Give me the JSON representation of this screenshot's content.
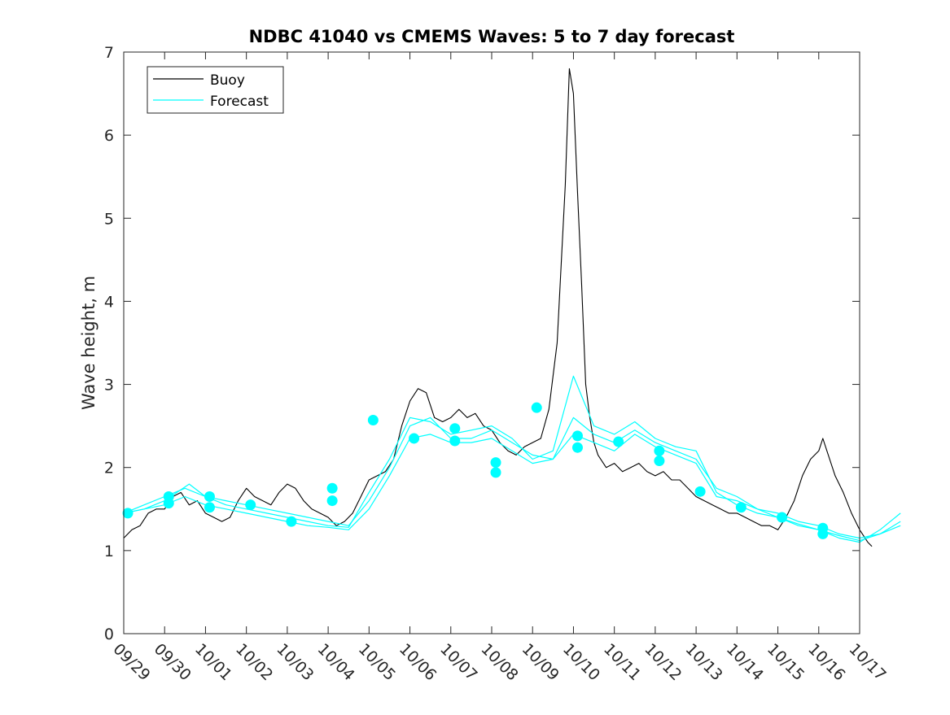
{
  "chart_data": {
    "type": "line",
    "title": "NDBC 41040 vs CMEMS Waves: 5 to 7 day forecast",
    "xlabel": "",
    "ylabel": "Wave height, m",
    "xlim": [
      "09/29",
      "10/17"
    ],
    "ylim": [
      0,
      7
    ],
    "x_ticks": [
      "09/29",
      "09/30",
      "10/01",
      "10/02",
      "10/03",
      "10/04",
      "10/05",
      "10/06",
      "10/07",
      "10/08",
      "10/09",
      "10/10",
      "10/11",
      "10/12",
      "10/13",
      "10/14",
      "10/15",
      "10/16",
      "10/17"
    ],
    "y_ticks": [
      0,
      1,
      2,
      3,
      4,
      5,
      6,
      7
    ],
    "x_units": "days since 09/29 00:00",
    "grid": false,
    "legend": {
      "placement": "top-left",
      "entries": [
        "Buoy",
        "Forecast"
      ]
    },
    "colors": {
      "buoy": "#000000",
      "forecast": "#00ffff",
      "axes": "#262626"
    },
    "series": [
      {
        "name": "Buoy",
        "color": "#000000",
        "points": [
          [
            0,
            1.15
          ],
          [
            0.2,
            1.25
          ],
          [
            0.4,
            1.3
          ],
          [
            0.6,
            1.45
          ],
          [
            0.8,
            1.5
          ],
          [
            1.0,
            1.5
          ],
          [
            1.2,
            1.65
          ],
          [
            1.4,
            1.7
          ],
          [
            1.6,
            1.55
          ],
          [
            1.8,
            1.6
          ],
          [
            2.0,
            1.45
          ],
          [
            2.2,
            1.4
          ],
          [
            2.4,
            1.35
          ],
          [
            2.6,
            1.4
          ],
          [
            2.8,
            1.6
          ],
          [
            3.0,
            1.75
          ],
          [
            3.2,
            1.65
          ],
          [
            3.4,
            1.6
          ],
          [
            3.6,
            1.55
          ],
          [
            3.8,
            1.7
          ],
          [
            4.0,
            1.8
          ],
          [
            4.2,
            1.75
          ],
          [
            4.4,
            1.6
          ],
          [
            4.6,
            1.5
          ],
          [
            4.8,
            1.45
          ],
          [
            5.0,
            1.4
          ],
          [
            5.2,
            1.3
          ],
          [
            5.4,
            1.35
          ],
          [
            5.6,
            1.45
          ],
          [
            5.8,
            1.65
          ],
          [
            6.0,
            1.85
          ],
          [
            6.2,
            1.9
          ],
          [
            6.4,
            1.95
          ],
          [
            6.6,
            2.1
          ],
          [
            6.8,
            2.5
          ],
          [
            7.0,
            2.8
          ],
          [
            7.2,
            2.95
          ],
          [
            7.4,
            2.9
          ],
          [
            7.6,
            2.6
          ],
          [
            7.8,
            2.55
          ],
          [
            8.0,
            2.6
          ],
          [
            8.2,
            2.7
          ],
          [
            8.4,
            2.6
          ],
          [
            8.6,
            2.65
          ],
          [
            8.8,
            2.5
          ],
          [
            9.0,
            2.45
          ],
          [
            9.2,
            2.3
          ],
          [
            9.4,
            2.2
          ],
          [
            9.6,
            2.15
          ],
          [
            9.8,
            2.25
          ],
          [
            10.0,
            2.3
          ],
          [
            10.2,
            2.35
          ],
          [
            10.4,
            2.7
          ],
          [
            10.6,
            3.5
          ],
          [
            10.8,
            5.4
          ],
          [
            10.9,
            6.8
          ],
          [
            11.0,
            6.5
          ],
          [
            11.1,
            5.3
          ],
          [
            11.2,
            4.2
          ],
          [
            11.3,
            3.0
          ],
          [
            11.4,
            2.6
          ],
          [
            11.5,
            2.3
          ],
          [
            11.6,
            2.15
          ],
          [
            11.8,
            2.0
          ],
          [
            12.0,
            2.05
          ],
          [
            12.2,
            1.95
          ],
          [
            12.4,
            2.0
          ],
          [
            12.6,
            2.05
          ],
          [
            12.8,
            1.95
          ],
          [
            13.0,
            1.9
          ],
          [
            13.2,
            1.95
          ],
          [
            13.4,
            1.85
          ],
          [
            13.6,
            1.85
          ],
          [
            13.8,
            1.75
          ],
          [
            14.0,
            1.65
          ],
          [
            14.2,
            1.6
          ],
          [
            14.4,
            1.55
          ],
          [
            14.6,
            1.5
          ],
          [
            14.8,
            1.45
          ],
          [
            15.0,
            1.45
          ],
          [
            15.2,
            1.4
          ],
          [
            15.4,
            1.35
          ],
          [
            15.6,
            1.3
          ],
          [
            15.8,
            1.3
          ],
          [
            16.0,
            1.25
          ],
          [
            16.2,
            1.4
          ],
          [
            16.4,
            1.6
          ],
          [
            16.6,
            1.9
          ],
          [
            16.8,
            2.1
          ],
          [
            17.0,
            2.2
          ],
          [
            17.1,
            2.35
          ],
          [
            17.2,
            2.2
          ],
          [
            17.4,
            1.9
          ],
          [
            17.6,
            1.7
          ],
          [
            17.8,
            1.45
          ],
          [
            18.0,
            1.25
          ],
          [
            18.2,
            1.1
          ],
          [
            18.3,
            1.05
          ]
        ]
      },
      {
        "name": "Forecast",
        "color": "#00ffff",
        "points": [
          [
            0,
            1.45
          ],
          [
            0.5,
            1.5
          ],
          [
            1.0,
            1.6
          ],
          [
            1.3,
            1.7
          ],
          [
            1.6,
            1.8
          ],
          [
            2.0,
            1.65
          ],
          [
            2.5,
            1.6
          ],
          [
            3.0,
            1.55
          ],
          [
            3.5,
            1.5
          ],
          [
            4.0,
            1.45
          ],
          [
            4.5,
            1.4
          ],
          [
            5.0,
            1.35
          ],
          [
            5.5,
            1.3
          ],
          [
            6.0,
            1.6
          ],
          [
            6.5,
            2.0
          ],
          [
            7.0,
            2.5
          ],
          [
            7.5,
            2.6
          ],
          [
            8.0,
            2.35
          ],
          [
            8.5,
            2.35
          ],
          [
            9.0,
            2.45
          ],
          [
            9.5,
            2.3
          ],
          [
            10.0,
            2.15
          ],
          [
            10.5,
            2.1
          ],
          [
            11.0,
            2.6
          ],
          [
            11.5,
            2.4
          ],
          [
            12.0,
            2.3
          ],
          [
            12.5,
            2.45
          ],
          [
            13.0,
            2.3
          ],
          [
            13.5,
            2.2
          ],
          [
            14.0,
            2.1
          ],
          [
            14.5,
            1.75
          ],
          [
            15.0,
            1.65
          ],
          [
            15.5,
            1.5
          ],
          [
            16.0,
            1.45
          ],
          [
            16.5,
            1.35
          ],
          [
            17.0,
            1.3
          ],
          [
            17.5,
            1.2
          ],
          [
            18.0,
            1.15
          ],
          [
            18.5,
            1.2
          ],
          [
            19.0,
            1.35
          ]
        ]
      },
      {
        "name": "",
        "color": "#00ffff",
        "points": [
          [
            0,
            1.45
          ],
          [
            0.5,
            1.55
          ],
          [
            1.0,
            1.65
          ],
          [
            1.5,
            1.75
          ],
          [
            2.0,
            1.65
          ],
          [
            2.5,
            1.55
          ],
          [
            3.0,
            1.5
          ],
          [
            3.5,
            1.45
          ],
          [
            4.0,
            1.4
          ],
          [
            4.5,
            1.35
          ],
          [
            5.0,
            1.3
          ],
          [
            5.5,
            1.28
          ],
          [
            6.0,
            1.7
          ],
          [
            6.5,
            2.1
          ],
          [
            7.0,
            2.6
          ],
          [
            7.5,
            2.55
          ],
          [
            8.0,
            2.4
          ],
          [
            8.5,
            2.45
          ],
          [
            9.0,
            2.5
          ],
          [
            9.5,
            2.35
          ],
          [
            10.0,
            2.1
          ],
          [
            10.5,
            2.2
          ],
          [
            11.0,
            3.1
          ],
          [
            11.5,
            2.5
          ],
          [
            12.0,
            2.4
          ],
          [
            12.5,
            2.55
          ],
          [
            13.0,
            2.35
          ],
          [
            13.5,
            2.25
          ],
          [
            14.0,
            2.2
          ],
          [
            14.5,
            1.7
          ],
          [
            15.0,
            1.55
          ],
          [
            15.5,
            1.45
          ],
          [
            16.0,
            1.4
          ],
          [
            16.5,
            1.3
          ],
          [
            17.0,
            1.25
          ],
          [
            17.5,
            1.15
          ],
          [
            18.0,
            1.1
          ],
          [
            18.5,
            1.25
          ],
          [
            19.0,
            1.45
          ]
        ]
      },
      {
        "name": "",
        "color": "#00ffff",
        "points": [
          [
            0,
            1.45
          ],
          [
            0.5,
            1.5
          ],
          [
            1.0,
            1.55
          ],
          [
            1.5,
            1.65
          ],
          [
            2.0,
            1.55
          ],
          [
            2.5,
            1.5
          ],
          [
            3.0,
            1.45
          ],
          [
            3.5,
            1.4
          ],
          [
            4.0,
            1.35
          ],
          [
            4.5,
            1.3
          ],
          [
            5.0,
            1.28
          ],
          [
            5.5,
            1.25
          ],
          [
            6.0,
            1.5
          ],
          [
            6.5,
            1.9
          ],
          [
            7.0,
            2.35
          ],
          [
            7.5,
            2.4
          ],
          [
            8.0,
            2.3
          ],
          [
            8.5,
            2.3
          ],
          [
            9.0,
            2.35
          ],
          [
            9.5,
            2.2
          ],
          [
            10.0,
            2.05
          ],
          [
            10.5,
            2.1
          ],
          [
            11.0,
            2.4
          ],
          [
            11.5,
            2.3
          ],
          [
            12.0,
            2.2
          ],
          [
            12.5,
            2.4
          ],
          [
            13.0,
            2.25
          ],
          [
            13.5,
            2.15
          ],
          [
            14.0,
            2.05
          ],
          [
            14.5,
            1.65
          ],
          [
            15.0,
            1.6
          ],
          [
            15.5,
            1.5
          ],
          [
            16.0,
            1.4
          ],
          [
            16.5,
            1.32
          ],
          [
            17.0,
            1.25
          ],
          [
            17.5,
            1.18
          ],
          [
            18.0,
            1.12
          ],
          [
            18.5,
            1.2
          ],
          [
            19.0,
            1.3
          ]
        ]
      }
    ],
    "forecast_markers": [
      [
        0.1,
        1.45
      ],
      [
        1.1,
        1.57
      ],
      [
        1.1,
        1.65
      ],
      [
        2.1,
        1.52
      ],
      [
        2.1,
        1.65
      ],
      [
        3.1,
        1.55
      ],
      [
        4.1,
        1.35
      ],
      [
        5.1,
        1.6
      ],
      [
        5.1,
        1.75
      ],
      [
        6.1,
        2.57
      ],
      [
        7.1,
        2.35
      ],
      [
        8.1,
        2.32
      ],
      [
        8.1,
        2.47
      ],
      [
        9.1,
        1.94
      ],
      [
        9.1,
        2.06
      ],
      [
        10.1,
        2.72
      ],
      [
        11.1,
        2.24
      ],
      [
        11.1,
        2.38
      ],
      [
        12.1,
        2.31
      ],
      [
        13.1,
        2.08
      ],
      [
        13.1,
        2.2
      ],
      [
        14.1,
        1.71
      ],
      [
        15.1,
        1.52
      ],
      [
        16.1,
        1.4
      ],
      [
        17.1,
        1.2
      ],
      [
        17.1,
        1.27
      ]
    ]
  }
}
